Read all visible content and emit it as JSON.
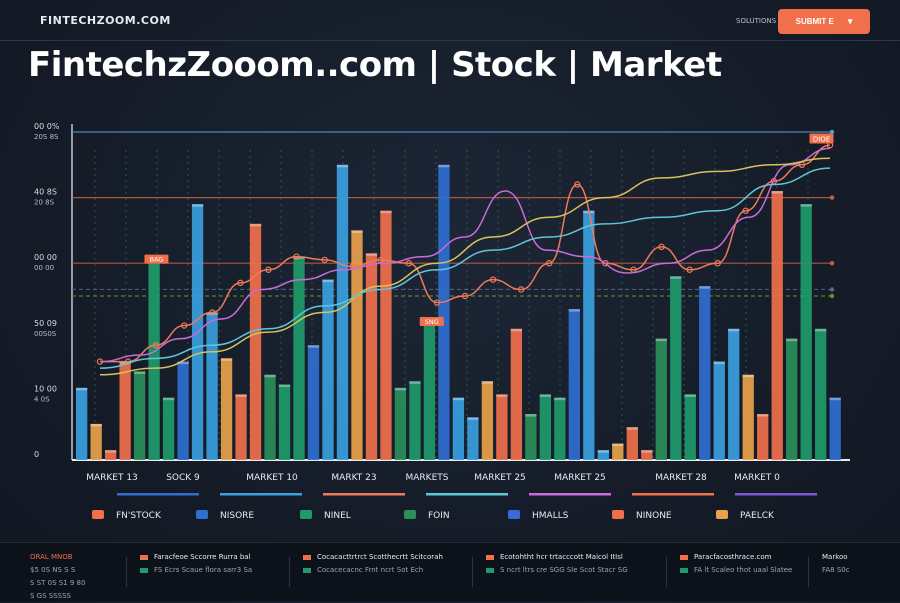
{
  "header": {
    "brand": "FINTECHZOOM.COM",
    "nav_link": "SOLUTIONS",
    "cta_label": "SUBMIT E",
    "headline": "FintechzZooom..com | Stock | Market"
  },
  "chart_data": {
    "type": "bar",
    "title": "",
    "xlabel": "",
    "ylabel": "",
    "ylim": [
      0,
      100
    ],
    "y_ticks": [
      {
        "value": 100,
        "label": "00 0%",
        "sublabel": "20S 8S"
      },
      {
        "value": 80,
        "label": "40 8S",
        "sublabel": "20 8S"
      },
      {
        "value": 60,
        "label": "00 00",
        "sublabel": "00 00"
      },
      {
        "value": 40,
        "label": "50 09",
        "sublabel": "00S0S"
      },
      {
        "value": 20,
        "label": "10 00",
        "sublabel": "4 0S"
      },
      {
        "value": 0,
        "label": "0",
        "sublabel": ""
      }
    ],
    "x_tick_labels": [
      "MARKET 13",
      "SOCK 9",
      "MARKET 10",
      "MARKT 23",
      "MARKETS",
      "MARKET 25",
      "MARKET 25",
      "MARKET 28",
      "MARKET 0"
    ],
    "bar_colors": [
      "#3aa0e0",
      "#2f6fd0",
      "#1f9a6a",
      "#2a8f5a",
      "#f0704c",
      "#e8a24a"
    ],
    "bar_values": [
      22,
      11,
      3,
      30,
      27,
      62,
      19,
      30,
      78,
      45,
      31,
      20,
      72,
      26,
      23,
      62,
      35,
      55,
      90,
      70,
      63,
      76,
      22,
      24,
      43,
      90,
      19,
      13,
      24,
      20,
      40,
      14,
      20,
      19,
      46,
      76,
      3,
      5,
      10,
      3,
      37,
      56,
      20,
      53,
      30,
      40,
      26,
      14,
      82,
      37,
      78,
      40,
      19
    ],
    "bar_value_labels": [
      "",
      "",
      "",
      "",
      "",
      "BAG",
      "",
      "",
      "",
      "",
      "",
      "",
      "",
      "",
      "",
      "",
      "",
      "",
      "",
      "",
      "",
      "",
      "",
      "",
      "SNG",
      "",
      "",
      "",
      "",
      "",
      "",
      "",
      "",
      "",
      "",
      "",
      "",
      "",
      "",
      "",
      "",
      "",
      "",
      "",
      "",
      "",
      "",
      "",
      "",
      "",
      "",
      "",
      ""
    ],
    "series": [
      {
        "color": "#ef7a5a",
        "values": [
          30,
          30,
          35,
          41,
          45,
          54,
          58,
          62,
          61,
          59,
          61,
          60,
          48,
          50,
          55,
          52,
          60,
          84,
          60,
          58,
          65,
          58,
          60,
          76,
          85,
          90,
          96
        ]
      },
      {
        "color": "#c96bd8",
        "values": [
          30,
          32,
          37,
          43,
          52,
          55,
          58,
          60,
          62,
          68,
          82,
          64,
          62,
          57,
          60,
          64,
          74,
          90,
          95
        ]
      },
      {
        "color": "#d7c25e",
        "values": [
          26,
          28,
          33,
          39,
          45,
          53,
          60,
          68,
          74,
          80,
          86,
          88,
          90,
          92
        ]
      },
      {
        "color": "#5fc6d8",
        "values": [
          28,
          31,
          35,
          40,
          47,
          52,
          58,
          64,
          68,
          72,
          74,
          76,
          84,
          89
        ]
      }
    ],
    "hlines": [
      {
        "value": 100,
        "color": "#4b9fd6"
      },
      {
        "value": 80,
        "color": "#c5613f"
      },
      {
        "value": 60,
        "color": "#c5613f"
      },
      {
        "value": 50,
        "color": "#6a8f2a"
      },
      {
        "value": 52,
        "color": "#4f6a8f"
      }
    ],
    "annotations": [
      {
        "text": "DIOE",
        "x_index": 52,
        "value": 98
      }
    ],
    "legend": [
      {
        "label": "FN'STOCK",
        "color": "#f0704c"
      },
      {
        "label": "NISORE",
        "color": "#2f6fd0"
      },
      {
        "label": "NINEL",
        "color": "#1f9a6a"
      },
      {
        "label": "FOIN",
        "color": "#2a8f5a"
      },
      {
        "label": "HMALLS",
        "color": "#3a6ad8"
      },
      {
        "label": "NINONE",
        "color": "#f0704c"
      },
      {
        "label": "PAELCK",
        "color": "#e8a24a"
      }
    ],
    "legend_top_bars": [
      "#2f6fd0",
      "#3aa0e0",
      "#ef7a5a",
      "#5fc6d8",
      "#c96bd8",
      "#f0704c",
      "#7a5ad8"
    ],
    "grid": false,
    "legend_placement": "bottom"
  },
  "footer": {
    "columns": [
      {
        "t1": "ORAL MNOB",
        "t2": "$5 0S NS S S",
        "t3": "S ST 0S S1 9 80",
        "t4": "S GS SSSSS",
        "t1_color": "#f0704c"
      },
      {
        "t1": "Faracfeoe Sccorre Rurra bal",
        "t2": "FS Ecrs Scaue flora sarr3 Sa",
        "dot": "#f0704c"
      },
      {
        "t1": "Cocacacttrtrct Scotthecrtt Scitcorah",
        "t2": "Cocacecacnc Frnt ncrt Sot Ech",
        "dot": "#f0704c"
      },
      {
        "t1": "Ecotohtht hcr trtacccott Maicol ItIsl",
        "t2": "S ncrt ltrs cre SGG Sle Scot Stacr  SG",
        "dot": "#f0704c"
      },
      {
        "t1": "Paracfacosthrace.com",
        "t2": "FA lt Scaleo thot uaal Slatee",
        "dot": "#f0704c"
      },
      {
        "t1": "Markoo",
        "t2": "FA8 S0c"
      }
    ]
  }
}
